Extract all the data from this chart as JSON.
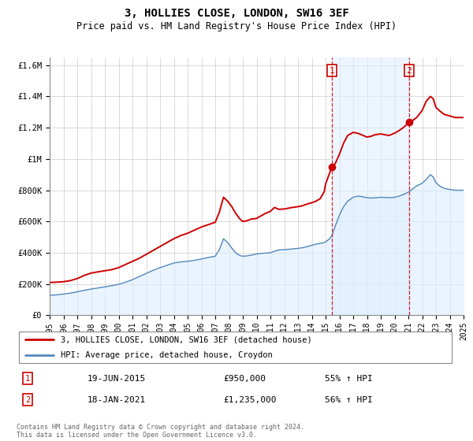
{
  "title": "3, HOLLIES CLOSE, LONDON, SW16 3EF",
  "subtitle": "Price paid vs. HM Land Registry's House Price Index (HPI)",
  "ylim": [
    0,
    1650000
  ],
  "xlim": [
    1995,
    2025
  ],
  "red_color": "#cc0000",
  "blue_color": "#5588bb",
  "blue_fill_color": "#ddeeff",
  "shade_color": "#ddeeff",
  "grid_color": "#cccccc",
  "sale1_x": 2015.46,
  "sale1_y": 950000,
  "sale2_x": 2021.04,
  "sale2_y": 1235000,
  "sale1_date": "19-JUN-2015",
  "sale1_price": "£950,000",
  "sale1_hpi": "55% ↑ HPI",
  "sale2_date": "18-JAN-2021",
  "sale2_price": "£1,235,000",
  "sale2_hpi": "56% ↑ HPI",
  "legend_line1": "3, HOLLIES CLOSE, LONDON, SW16 3EF (detached house)",
  "legend_line2": "HPI: Average price, detached house, Croydon",
  "footnote": "Contains HM Land Registry data © Crown copyright and database right 2024.\nThis data is licensed under the Open Government Licence v3.0.",
  "yticks": [
    0,
    200000,
    400000,
    600000,
    800000,
    1000000,
    1200000,
    1400000,
    1600000
  ],
  "ytick_labels": [
    "£0",
    "£200K",
    "£400K",
    "£600K",
    "£800K",
    "£1M",
    "£1.2M",
    "£1.4M",
    "£1.6M"
  ],
  "red_points": [
    [
      1995.0,
      210000
    ],
    [
      1995.5,
      212000
    ],
    [
      1996.0,
      215000
    ],
    [
      1996.5,
      222000
    ],
    [
      1997.0,
      235000
    ],
    [
      1997.5,
      255000
    ],
    [
      1998.0,
      270000
    ],
    [
      1998.5,
      278000
    ],
    [
      1999.0,
      285000
    ],
    [
      1999.5,
      292000
    ],
    [
      2000.0,
      305000
    ],
    [
      2000.5,
      325000
    ],
    [
      2001.0,
      345000
    ],
    [
      2001.5,
      365000
    ],
    [
      2002.0,
      390000
    ],
    [
      2002.5,
      415000
    ],
    [
      2003.0,
      440000
    ],
    [
      2003.5,
      465000
    ],
    [
      2004.0,
      490000
    ],
    [
      2004.5,
      510000
    ],
    [
      2005.0,
      525000
    ],
    [
      2005.5,
      545000
    ],
    [
      2006.0,
      565000
    ],
    [
      2006.5,
      580000
    ],
    [
      2007.0,
      595000
    ],
    [
      2007.3,
      660000
    ],
    [
      2007.6,
      755000
    ],
    [
      2007.9,
      730000
    ],
    [
      2008.2,
      695000
    ],
    [
      2008.5,
      650000
    ],
    [
      2008.8,
      615000
    ],
    [
      2009.0,
      600000
    ],
    [
      2009.3,
      605000
    ],
    [
      2009.6,
      615000
    ],
    [
      2010.0,
      620000
    ],
    [
      2010.3,
      635000
    ],
    [
      2010.6,
      650000
    ],
    [
      2011.0,
      665000
    ],
    [
      2011.3,
      690000
    ],
    [
      2011.6,
      678000
    ],
    [
      2012.0,
      680000
    ],
    [
      2012.3,
      685000
    ],
    [
      2012.6,
      690000
    ],
    [
      2013.0,
      695000
    ],
    [
      2013.3,
      700000
    ],
    [
      2013.6,
      710000
    ],
    [
      2014.0,
      720000
    ],
    [
      2014.3,
      730000
    ],
    [
      2014.6,
      745000
    ],
    [
      2014.9,
      790000
    ],
    [
      2015.0,
      840000
    ],
    [
      2015.46,
      950000
    ],
    [
      2015.7,
      970000
    ],
    [
      2016.0,
      1030000
    ],
    [
      2016.3,
      1100000
    ],
    [
      2016.6,
      1150000
    ],
    [
      2017.0,
      1170000
    ],
    [
      2017.3,
      1165000
    ],
    [
      2017.6,
      1155000
    ],
    [
      2018.0,
      1140000
    ],
    [
      2018.3,
      1145000
    ],
    [
      2018.6,
      1155000
    ],
    [
      2019.0,
      1160000
    ],
    [
      2019.3,
      1155000
    ],
    [
      2019.6,
      1150000
    ],
    [
      2020.0,
      1165000
    ],
    [
      2020.3,
      1180000
    ],
    [
      2020.7,
      1205000
    ],
    [
      2021.04,
      1235000
    ],
    [
      2021.3,
      1245000
    ],
    [
      2021.6,
      1265000
    ],
    [
      2022.0,
      1310000
    ],
    [
      2022.3,
      1370000
    ],
    [
      2022.6,
      1400000
    ],
    [
      2022.8,
      1385000
    ],
    [
      2023.0,
      1330000
    ],
    [
      2023.3,
      1305000
    ],
    [
      2023.6,
      1285000
    ],
    [
      2024.0,
      1275000
    ],
    [
      2024.4,
      1265000
    ],
    [
      2024.8,
      1265000
    ],
    [
      2025.0,
      1265000
    ]
  ],
  "blue_points": [
    [
      1995.0,
      128000
    ],
    [
      1995.5,
      131000
    ],
    [
      1996.0,
      136000
    ],
    [
      1996.5,
      142000
    ],
    [
      1997.0,
      150000
    ],
    [
      1997.5,
      160000
    ],
    [
      1998.0,
      168000
    ],
    [
      1998.5,
      175000
    ],
    [
      1999.0,
      182000
    ],
    [
      1999.5,
      190000
    ],
    [
      2000.0,
      198000
    ],
    [
      2000.5,
      212000
    ],
    [
      2001.0,
      228000
    ],
    [
      2001.5,
      248000
    ],
    [
      2002.0,
      268000
    ],
    [
      2002.5,
      288000
    ],
    [
      2003.0,
      305000
    ],
    [
      2003.5,
      320000
    ],
    [
      2004.0,
      335000
    ],
    [
      2004.5,
      342000
    ],
    [
      2005.0,
      345000
    ],
    [
      2005.5,
      352000
    ],
    [
      2006.0,
      360000
    ],
    [
      2006.5,
      370000
    ],
    [
      2007.0,
      378000
    ],
    [
      2007.3,
      420000
    ],
    [
      2007.6,
      490000
    ],
    [
      2007.9,
      465000
    ],
    [
      2008.2,
      430000
    ],
    [
      2008.5,
      398000
    ],
    [
      2008.8,
      382000
    ],
    [
      2009.0,
      378000
    ],
    [
      2009.3,
      380000
    ],
    [
      2009.6,
      385000
    ],
    [
      2010.0,
      392000
    ],
    [
      2010.3,
      396000
    ],
    [
      2010.6,
      398000
    ],
    [
      2011.0,
      400000
    ],
    [
      2011.3,
      410000
    ],
    [
      2011.6,
      418000
    ],
    [
      2012.0,
      420000
    ],
    [
      2012.3,
      422000
    ],
    [
      2012.6,
      425000
    ],
    [
      2013.0,
      428000
    ],
    [
      2013.3,
      432000
    ],
    [
      2013.6,
      438000
    ],
    [
      2014.0,
      448000
    ],
    [
      2014.3,
      455000
    ],
    [
      2014.6,
      460000
    ],
    [
      2014.9,
      465000
    ],
    [
      2015.0,
      470000
    ],
    [
      2015.3,
      490000
    ],
    [
      2015.46,
      510000
    ],
    [
      2015.7,
      570000
    ],
    [
      2016.0,
      640000
    ],
    [
      2016.3,
      695000
    ],
    [
      2016.6,
      730000
    ],
    [
      2017.0,
      755000
    ],
    [
      2017.3,
      762000
    ],
    [
      2017.6,
      760000
    ],
    [
      2018.0,
      752000
    ],
    [
      2018.3,
      750000
    ],
    [
      2018.6,
      752000
    ],
    [
      2019.0,
      755000
    ],
    [
      2019.3,
      754000
    ],
    [
      2019.6,
      752000
    ],
    [
      2020.0,
      755000
    ],
    [
      2020.3,
      762000
    ],
    [
      2020.7,
      775000
    ],
    [
      2021.04,
      790000
    ],
    [
      2021.3,
      808000
    ],
    [
      2021.6,
      828000
    ],
    [
      2022.0,
      845000
    ],
    [
      2022.3,
      870000
    ],
    [
      2022.6,
      900000
    ],
    [
      2022.8,
      885000
    ],
    [
      2023.0,
      848000
    ],
    [
      2023.3,
      825000
    ],
    [
      2023.6,
      812000
    ],
    [
      2024.0,
      805000
    ],
    [
      2024.4,
      800000
    ],
    [
      2024.8,
      800000
    ],
    [
      2025.0,
      800000
    ]
  ]
}
